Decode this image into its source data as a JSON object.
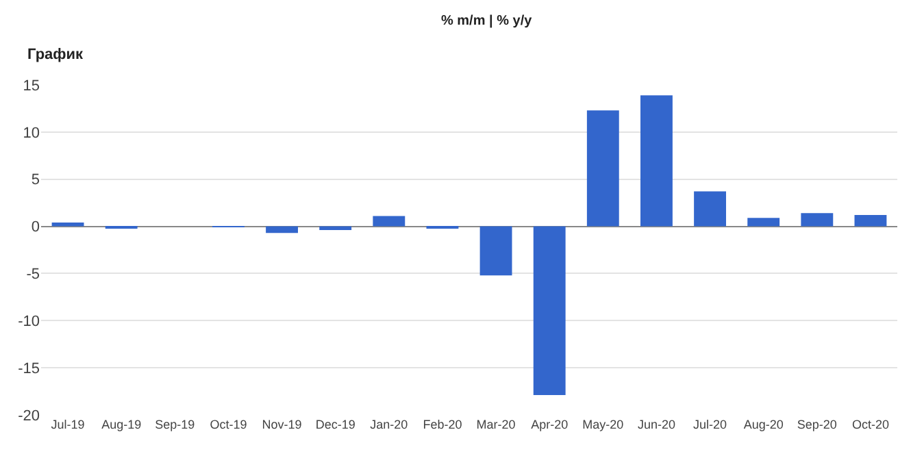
{
  "chart_data": {
    "type": "bar",
    "title": "График",
    "subtitle": "% m/m | % y/y",
    "categories": [
      "Jul-19",
      "Aug-19",
      "Sep-19",
      "Oct-19",
      "Nov-19",
      "Dec-19",
      "Jan-20",
      "Feb-20",
      "Mar-20",
      "Apr-20",
      "May-20",
      "Jun-20",
      "Jul-20",
      "Aug-20",
      "Sep-20",
      "Oct-20"
    ],
    "values": [
      0.4,
      -0.2,
      0,
      -0.1,
      -0.7,
      -0.4,
      1.1,
      -0.2,
      -5.2,
      -17.9,
      12.3,
      13.9,
      3.7,
      0.9,
      1.4,
      1.2
    ],
    "color": "#3366cc",
    "ylim": [
      -20,
      15
    ],
    "yticks": [
      -20,
      -15,
      -10,
      -5,
      0,
      5,
      10,
      15
    ],
    "grid": "y"
  }
}
